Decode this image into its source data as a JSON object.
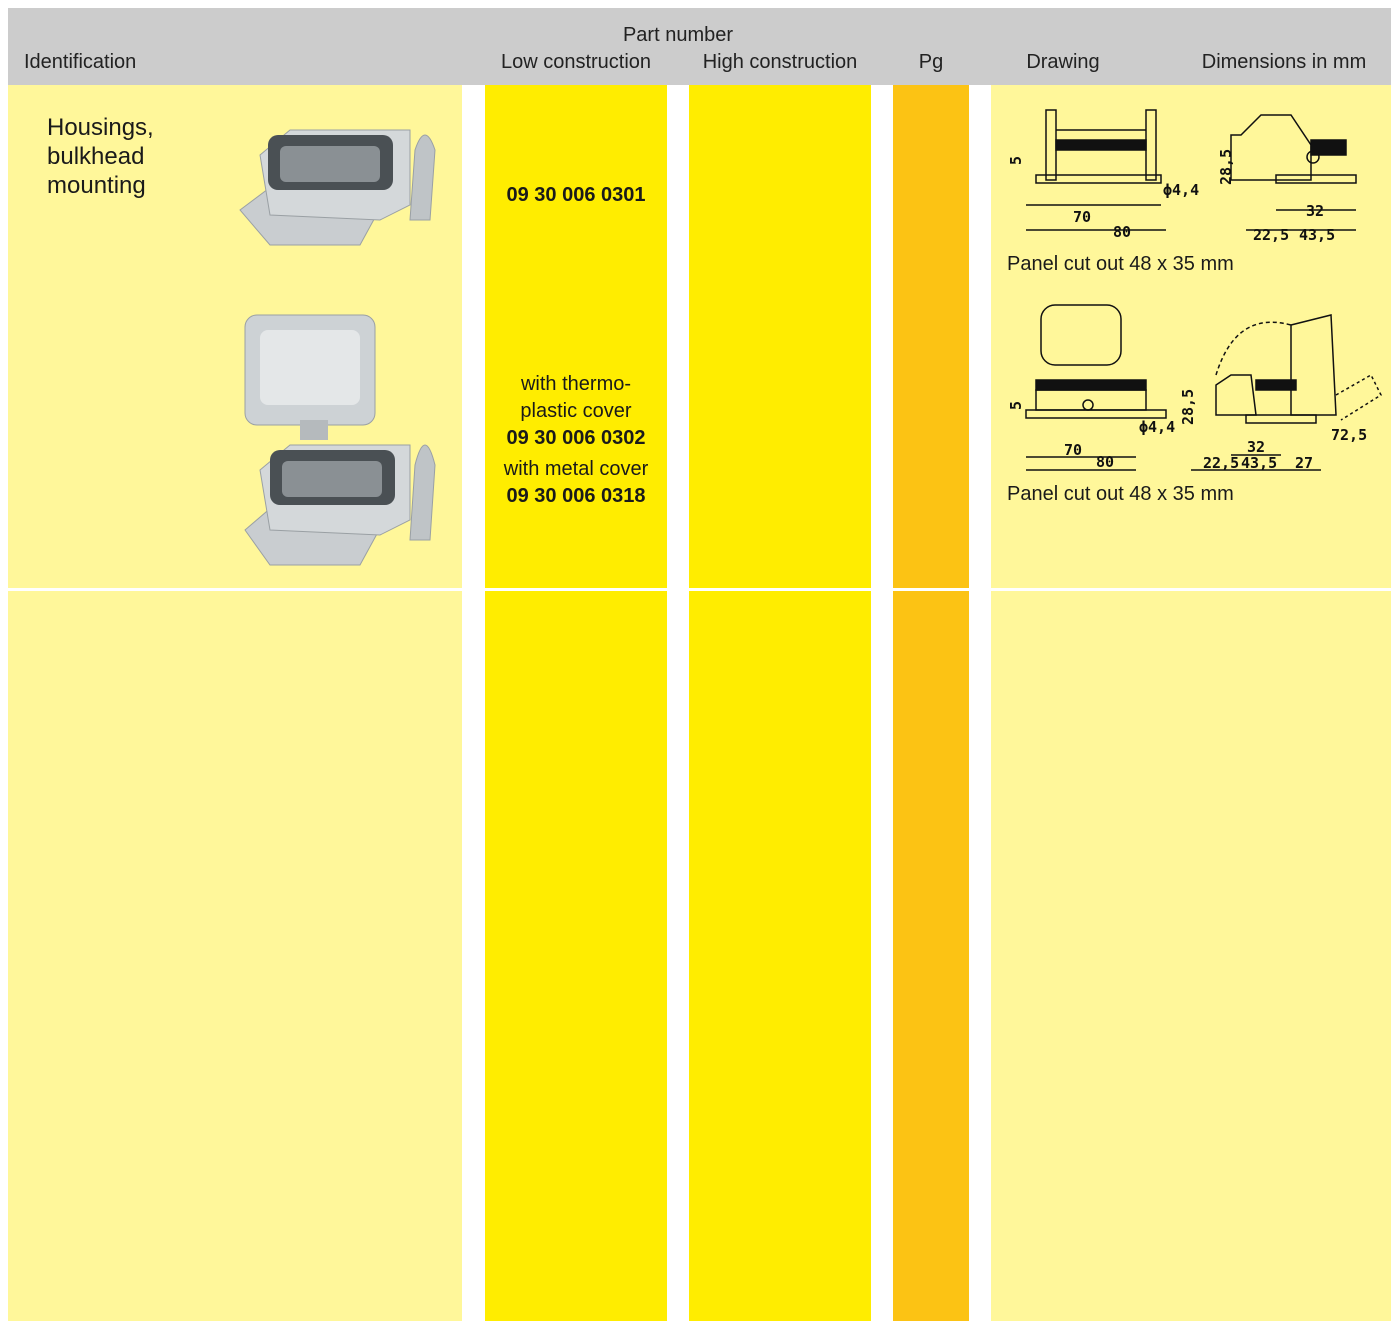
{
  "header": {
    "part_number": "Part number",
    "identification": "Identification",
    "low": "Low construction",
    "high": "High construction",
    "pg": "Pg",
    "drawing": "Drawing",
    "dimensions": "Dimensions in mm"
  },
  "row": {
    "identification": [
      "Housings,",
      "bulkhead",
      "mounting"
    ],
    "low": [
      "09 30 006 0301",
      "with thermo-",
      "plastic cover",
      "09 30 006 0302",
      "with metal cover",
      "09 30 006 0318"
    ]
  },
  "drawings": [
    {
      "labels": [
        "5",
        "70",
        "80",
        "ϕ4,4",
        "28,5",
        "32",
        "22,5",
        "43,5"
      ],
      "caption": "Panel cut out 48 x 35 mm"
    },
    {
      "labels": [
        "5",
        "70",
        "80",
        "ϕ4,4",
        "28,5",
        "32",
        "22,5",
        "43,5",
        "27",
        "72,5"
      ],
      "caption": "Panel cut out 48 x 35 mm"
    }
  ]
}
